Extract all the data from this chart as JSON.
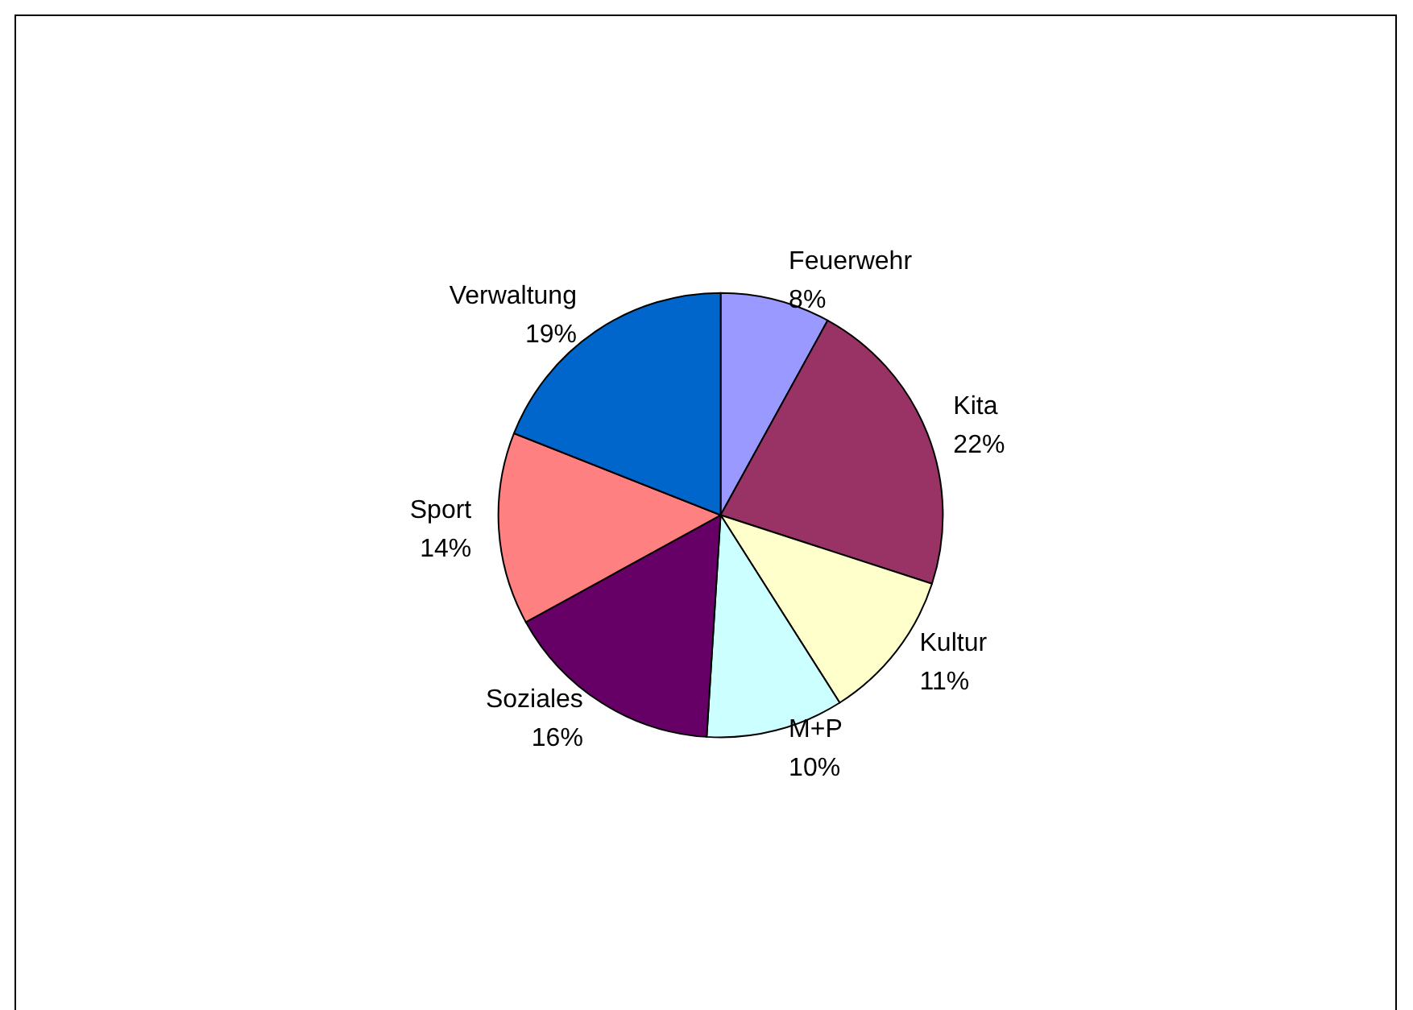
{
  "chart_data": {
    "type": "pie",
    "categories": [
      "Feuerwehr",
      "Kita",
      "Kultur",
      "M+P",
      "Soziales",
      "Sport",
      "Verwaltung"
    ],
    "values": [
      8,
      22,
      11,
      10,
      16,
      14,
      19
    ],
    "value_labels": [
      "8%",
      "22%",
      "11%",
      "10%",
      "16%",
      "14%",
      "19%"
    ],
    "colors": [
      "#9999ff",
      "#993366",
      "#ffffcc",
      "#ccffff",
      "#660066",
      "#ff8080",
      "#0066cc"
    ],
    "legend": false
  }
}
